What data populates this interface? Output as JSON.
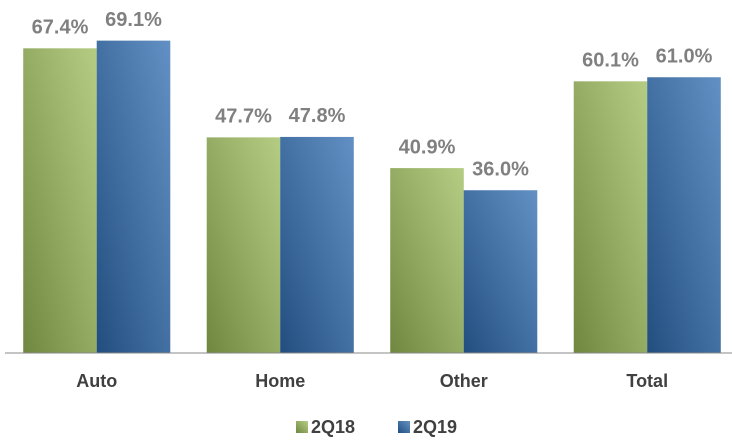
{
  "chart_data": {
    "type": "bar",
    "categories": [
      "Auto",
      "Home",
      "Other",
      "Total"
    ],
    "series": [
      {
        "name": "2Q18",
        "color": "#9bbb59",
        "values": [
          67.4,
          47.7,
          40.9,
          60.1
        ],
        "value_labels": [
          "67.4%",
          "47.7%",
          "40.9%",
          "60.1%"
        ]
      },
      {
        "name": "2Q19",
        "color": "#2e6bb0",
        "values": [
          69.1,
          47.8,
          36.0,
          61.0
        ],
        "value_labels": [
          "69.1%",
          "47.8%",
          "36.0%",
          "61.0%"
        ]
      }
    ],
    "ylim": [
      0,
      75
    ]
  }
}
